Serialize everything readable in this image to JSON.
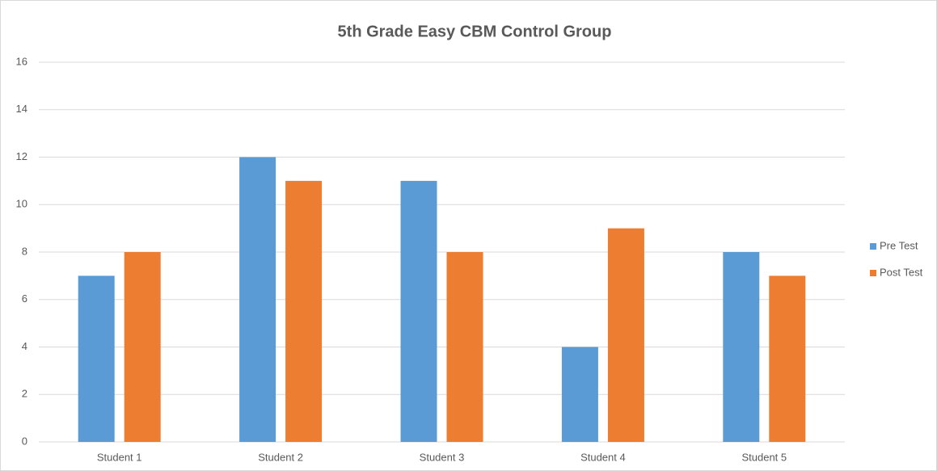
{
  "chart_data": {
    "type": "bar",
    "title": "5th Grade Easy CBM Control Group",
    "categories": [
      "Student 1",
      "Student 2",
      "Student 3",
      "Student 4",
      "Student 5"
    ],
    "series": [
      {
        "name": "Pre Test",
        "color": "#5b9bd5",
        "values": [
          7,
          12,
          11,
          4,
          8
        ]
      },
      {
        "name": "Post Test",
        "color": "#ed7d31",
        "values": [
          8,
          11,
          8,
          9,
          7
        ]
      }
    ],
    "ylim": [
      0,
      16
    ],
    "yticks": [
      0,
      2,
      4,
      6,
      8,
      10,
      12,
      14,
      16
    ],
    "grid": true,
    "legend": "right"
  }
}
